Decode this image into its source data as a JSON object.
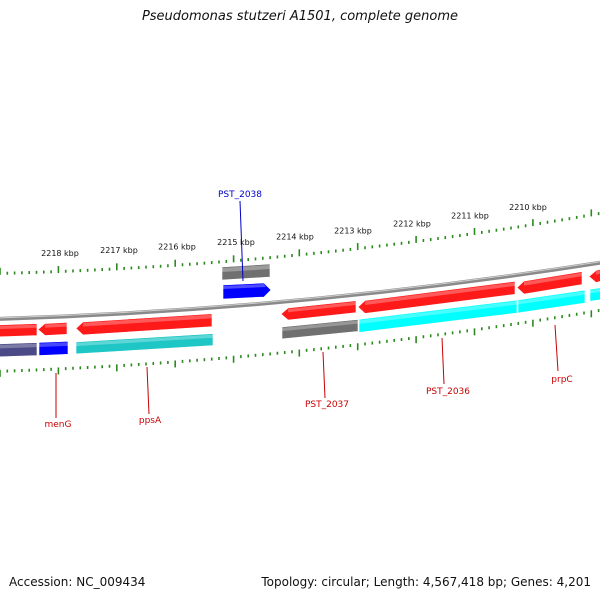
{
  "title": "Pseudomonas stutzeri A1501, complete genome",
  "footer": {
    "accession": "Accession: NC_009434",
    "topology": "Topology: circular; Length: 4,567,418 bp; Genes: 4,201"
  },
  "colors": {
    "background": "#ffffff",
    "backbone": "#8a8a8a",
    "tick": "#2b8a1e",
    "cds_forward": "#ff1a1a",
    "cds_reverse": "#00ffff",
    "rna": "#0000ff",
    "other_feature": "#707070",
    "label_red": "#cc0000",
    "label_blue": "#0000cc"
  },
  "scale_labels": [
    "2210 kbp",
    "2211 kbp",
    "2212 kbp",
    "2213 kbp",
    "2214 kbp",
    "2215 kbp",
    "2216 kbp",
    "2217 kbp",
    "2218 kbp"
  ],
  "gene_labels": [
    {
      "text": "PST_2038",
      "color": "label_blue"
    },
    {
      "text": "menG",
      "color": "label_red"
    },
    {
      "text": "ppsA",
      "color": "label_red"
    },
    {
      "text": "PST_2037",
      "color": "label_red"
    },
    {
      "text": "PST_2036",
      "color": "label_red"
    },
    {
      "text": "prpC",
      "color": "label_red"
    }
  ]
}
